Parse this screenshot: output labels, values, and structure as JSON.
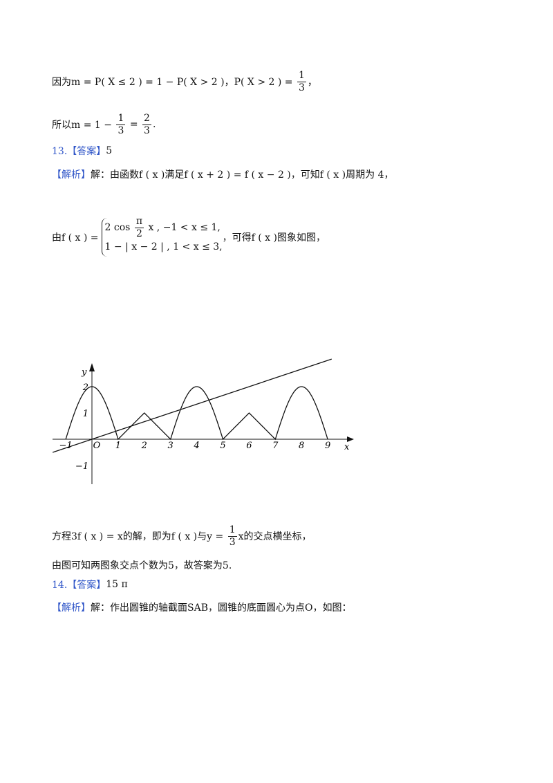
{
  "lines": [
    {
      "parts": [
        "因为m = P( X ≤ 2 ) = 1 − P( X > 2 )，P( X > 2 ) = ",
        {
          "frac": [
            "1",
            "3"
          ]
        },
        "，"
      ]
    },
    {
      "parts": [
        "所以m = 1 − ",
        {
          "frac": [
            "1",
            "3"
          ]
        },
        " = ",
        {
          "frac": [
            "2",
            "3"
          ]
        },
        "."
      ]
    },
    {
      "parts": [
        {
          "blue": "13.【答案】"
        },
        "5"
      ]
    },
    {
      "parts": [
        {
          "blue": "【解析】"
        },
        "解：由函数f ( x )满足f ( x + 2 ) = f ( x − 2 )，可知f ( x )周期为 4，"
      ]
    }
  ],
  "piecewise": {
    "prefix": "由f ( x ) =",
    "cases": [
      [
        "2 cos ",
        {
          "frac": [
            "π",
            "2"
          ]
        },
        " x , −1 < x ≤ 1,"
      ],
      [
        "1 − | x − 2 | , 1 < x ≤ 3,"
      ]
    ],
    "suffix": "，可得f ( x )图象如图，"
  },
  "graph": {
    "x_tick_labels": [
      "−1",
      "O",
      "1",
      "2",
      "3",
      "4",
      "5",
      "6",
      "7",
      "8",
      "9"
    ],
    "y_tick_labels": [
      "2",
      "1",
      "−1"
    ],
    "x_axis_label": "x",
    "y_axis_label": "y"
  },
  "lines_after": [
    {
      "parts": [
        "方程3f ( x ) = x的解，即为f ( x )与y = ",
        {
          "frac": [
            "1",
            "3"
          ]
        },
        "x的交点横坐标，"
      ]
    },
    {
      "parts": [
        "由图可知两图象交点个数为5，故答案为5."
      ]
    },
    {
      "parts": [
        {
          "blue": "14.【答案】"
        },
        "15 π"
      ]
    },
    {
      "parts": [
        {
          "blue": "【解析】"
        },
        "解：作出圆锥的轴截面SAB，圆锥的底面圆心为点O，如图："
      ]
    }
  ]
}
